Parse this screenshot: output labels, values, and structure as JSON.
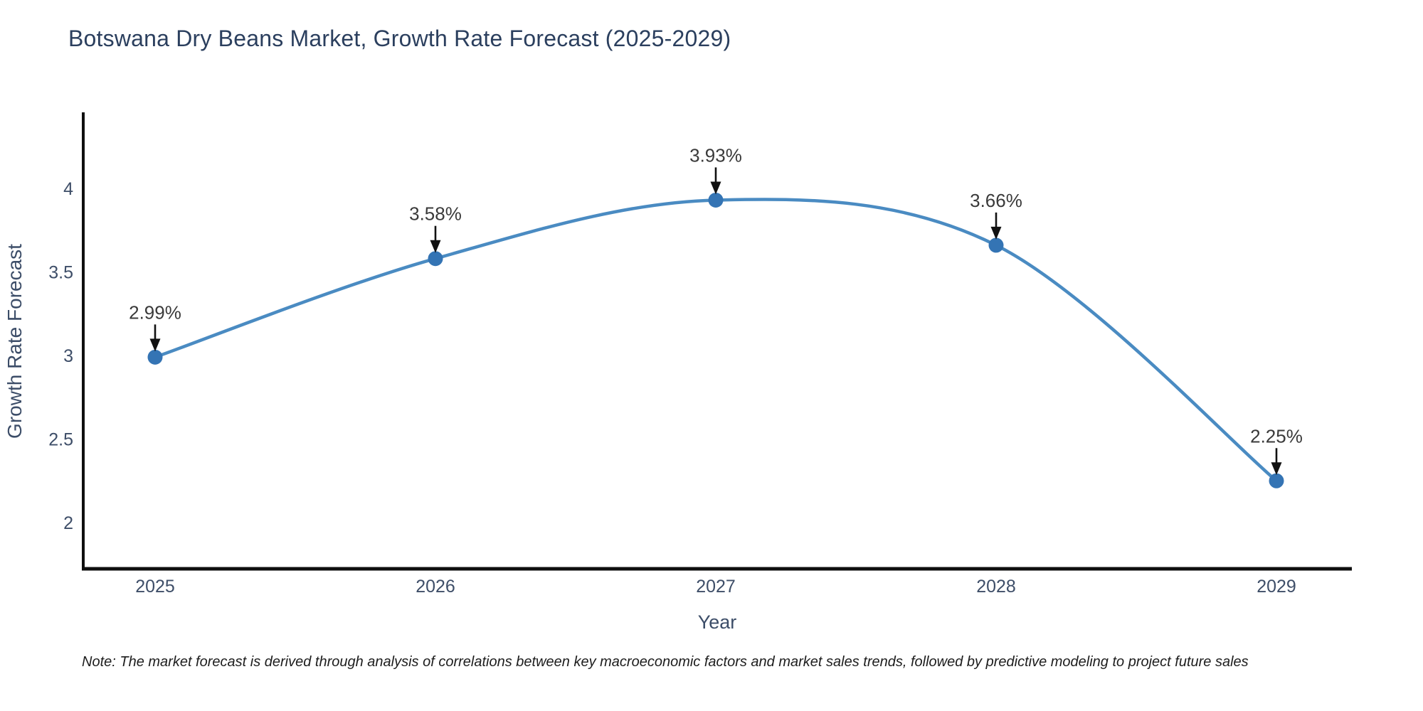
{
  "title": "Botswana Dry Beans Market, Growth Rate Forecast (2025-2029)",
  "note": "Note: The market forecast is derived through analysis of correlations between key macroeconomic factors and market sales trends, followed by predictive modeling to project future sales",
  "chart_data": {
    "type": "line",
    "title": "Botswana Dry Beans Market, Growth Rate Forecast (2025-2029)",
    "xlabel": "Year",
    "ylabel": "Growth Rate Forecast",
    "x": [
      2025,
      2026,
      2027,
      2028,
      2029
    ],
    "values": [
      2.99,
      3.58,
      3.93,
      3.66,
      2.25
    ],
    "point_labels": [
      "2.99%",
      "3.58%",
      "3.93%",
      "3.66%",
      "2.25%"
    ],
    "x_tick_labels": [
      "2025",
      "2026",
      "2027",
      "2028",
      "2029"
    ],
    "y_tick_values": [
      2,
      2.5,
      3,
      3.5,
      4
    ],
    "y_tick_labels": [
      "2",
      "2.5",
      "3",
      "3.5",
      "4"
    ],
    "ylim": [
      1.71,
      4.45
    ],
    "grid": false,
    "legend": null,
    "smooth_line": true,
    "colors": {
      "line": "#4a8bc2",
      "marker": "#3474b4",
      "annotation_text": "#3a3a3a",
      "annotation_arrow": "#111111",
      "axis_spine": "#0f0f0f",
      "tick_text": "#3e4e68",
      "axis_label_text": "#3c4d68",
      "title_text": "#2b3f5e"
    }
  }
}
